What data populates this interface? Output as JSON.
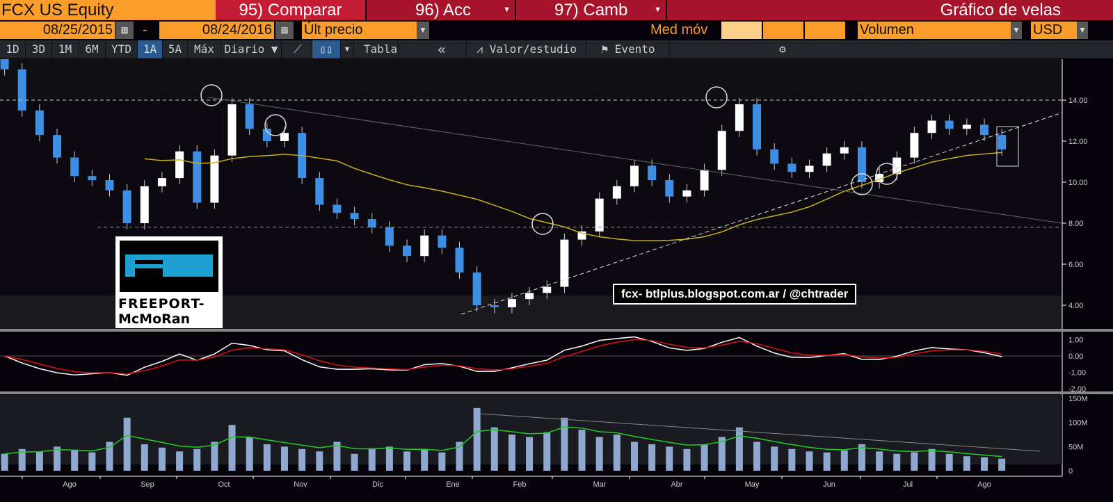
{
  "header": {
    "security": "FCX US Equity",
    "compare": "95) Comparar",
    "actions": "96) Acc",
    "change": "97) Camb",
    "chart_title": "Gráfico de velas"
  },
  "controls": {
    "start_date": "08/25/2015",
    "dash": "-",
    "end_date": "08/24/2016",
    "price_field": "Últ precio",
    "moving_avg_label": "Med móv",
    "lower_study": "Volumen",
    "currency": "USD"
  },
  "toolbar": {
    "ranges": [
      "1D",
      "3D",
      "1M",
      "6M",
      "YTD",
      "1A",
      "5A",
      "Máx"
    ],
    "selected_range": "1A",
    "period": "Diario ▼",
    "table": "Tabla",
    "collapse": "«",
    "value_study": "Valor/estudio",
    "event": "Evento"
  },
  "watermark": "fcx- btlplus.blogspot.com.ar / @chtrader",
  "logo": {
    "line1": "FREEPORT-",
    "line2": "McMoRan"
  },
  "colors": {
    "up": "#ffffff",
    "down": "#3d8fe6",
    "ma": "#c8b020",
    "volume": "#8fa8d0",
    "volume_ma": "#22cc22",
    "macd": "#ffffff",
    "signal": "#dd1111"
  },
  "chart_data": {
    "type": "candlestick",
    "x": [
      "2015-07-06",
      "2015-07-13",
      "2015-07-20",
      "2015-07-27",
      "2015-08-03",
      "2015-08-10",
      "2015-08-17",
      "2015-08-24",
      "2015-08-31",
      "2015-09-07",
      "2015-09-14",
      "2015-09-21",
      "2015-09-28",
      "2015-10-05",
      "2015-10-12",
      "2015-10-19",
      "2015-10-26",
      "2015-11-02",
      "2015-11-09",
      "2015-11-16",
      "2015-11-23",
      "2015-11-30",
      "2015-12-07",
      "2015-12-14",
      "2015-12-21",
      "2015-12-28",
      "2016-01-04",
      "2016-01-11",
      "2016-01-18",
      "2016-01-25",
      "2016-02-01",
      "2016-02-08",
      "2016-02-15",
      "2016-02-22",
      "2016-02-29",
      "2016-03-07",
      "2016-03-14",
      "2016-03-21",
      "2016-03-28",
      "2016-04-04",
      "2016-04-11",
      "2016-04-18",
      "2016-04-25",
      "2016-05-02",
      "2016-05-09",
      "2016-05-16",
      "2016-05-23",
      "2016-05-30",
      "2016-06-06",
      "2016-06-13",
      "2016-06-20",
      "2016-06-27",
      "2016-07-04",
      "2016-07-11",
      "2016-07-18",
      "2016-07-25",
      "2016-08-01",
      "2016-08-08"
    ],
    "close": [
      15.5,
      13.5,
      12.3,
      11.2,
      10.3,
      10.1,
      9.6,
      8.0,
      9.8,
      10.2,
      11.5,
      9.0,
      11.3,
      13.8,
      12.6,
      12.0,
      12.4,
      10.2,
      8.9,
      8.5,
      8.2,
      7.8,
      6.9,
      6.4,
      7.4,
      6.8,
      5.6,
      4.0,
      3.9,
      4.3,
      4.6,
      4.9,
      7.2,
      7.6,
      9.2,
      9.8,
      10.8,
      10.1,
      9.3,
      9.6,
      10.6,
      12.5,
      13.8,
      11.6,
      10.9,
      10.5,
      10.8,
      11.4,
      11.7,
      10.0,
      10.4,
      11.2,
      12.4,
      13.0,
      12.6,
      12.8,
      12.3,
      11.6
    ],
    "volume_millions": [
      35,
      45,
      40,
      50,
      42,
      38,
      60,
      110,
      55,
      48,
      40,
      45,
      60,
      95,
      70,
      55,
      50,
      45,
      40,
      60,
      35,
      45,
      50,
      40,
      45,
      38,
      60,
      130,
      90,
      75,
      70,
      80,
      110,
      85,
      70,
      75,
      60,
      55,
      50,
      45,
      55,
      70,
      90,
      60,
      50,
      45,
      40,
      38,
      42,
      55,
      40,
      35,
      38,
      45,
      35,
      30,
      28,
      25
    ],
    "price_axis": {
      "ticks": [
        "14.00",
        "12.00",
        "10.00",
        "8.00",
        "6.00",
        "4.00"
      ],
      "ylim": [
        3,
        16
      ]
    },
    "macd_axis": {
      "ticks": [
        "1.00",
        "0.00",
        "-1.00",
        "-2.00"
      ]
    },
    "volume_axis": {
      "ticks": [
        "150M",
        "100M",
        "50M",
        "0"
      ]
    },
    "months": [
      "Ago",
      "Sep",
      "Oct",
      "Nov",
      "Dic",
      "Ene",
      "Feb",
      "Mar",
      "Abr",
      "May",
      "Jun",
      "Jul",
      "Ago"
    ],
    "resistance_level": 14.0,
    "support_level": 7.8
  }
}
